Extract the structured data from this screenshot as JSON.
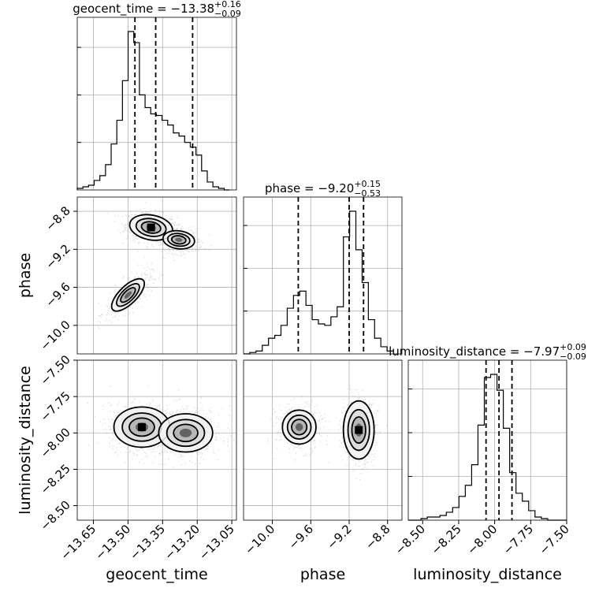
{
  "chart_data": {
    "type": "corner",
    "parameters": [
      "geocent_time",
      "phase",
      "luminosity_distance"
    ],
    "titles": {
      "geocent_time": {
        "name": "geocent_time",
        "median": "−13.38",
        "plus": "+0.16",
        "minus": "−0.09"
      },
      "phase": {
        "name": "phase",
        "median": "−9.20",
        "plus": "+0.15",
        "minus": "−0.53"
      },
      "luminosity_distance": {
        "name": "luminosity_distance",
        "median": "−7.97",
        "plus": "+0.09",
        "minus": "−0.09"
      }
    },
    "axes": {
      "geocent_time": {
        "range": [
          -13.72,
          -13.03
        ],
        "ticks": [
          -13.65,
          -13.5,
          -13.35,
          -13.2,
          -13.05
        ],
        "tick_labels": [
          "−13.65",
          "−13.50",
          "−13.35",
          "−13.20",
          "−13.05"
        ]
      },
      "phase": {
        "range": [
          -10.3,
          -8.65
        ],
        "ticks": [
          -10.0,
          -9.6,
          -9.2,
          -8.8
        ],
        "tick_labels": [
          "−10.0",
          "−9.6",
          "−9.2",
          "−8.8"
        ]
      },
      "luminosity_distance": {
        "range": [
          -8.6,
          -7.5
        ],
        "ticks": [
          -8.5,
          -8.25,
          -8.0,
          -7.75,
          -7.5
        ],
        "tick_labels": [
          "−8.50",
          "−8.25",
          "−8.00",
          "−7.75",
          "−7.50"
        ]
      }
    },
    "histograms": {
      "geocent_time": {
        "bin_edges": [
          -13.72,
          -13.6955,
          -13.671,
          -13.6465,
          -13.622,
          -13.5975,
          -13.573,
          -13.5485,
          -13.524,
          -13.4995,
          -13.475,
          -13.4505,
          -13.426,
          -13.4015,
          -13.377,
          -13.3525,
          -13.328,
          -13.3035,
          -13.279,
          -13.2545,
          -13.23,
          -13.2055,
          -13.181,
          -13.1565,
          -13.132,
          -13.1075,
          -13.083,
          -13.06
        ],
        "counts": [
          0.01,
          0.02,
          0.03,
          0.06,
          0.09,
          0.16,
          0.29,
          0.44,
          0.69,
          1.0,
          0.93,
          0.6,
          0.52,
          0.48,
          0.47,
          0.44,
          0.41,
          0.36,
          0.34,
          0.3,
          0.27,
          0.22,
          0.12,
          0.05,
          0.02,
          0.01,
          0.0
        ],
        "quantiles": [
          -13.47,
          -13.38,
          -13.22
        ]
      },
      "phase": {
        "bin_edges": [
          -10.3,
          -10.235,
          -10.17,
          -10.105,
          -10.04,
          -9.975,
          -9.91,
          -9.845,
          -9.78,
          -9.715,
          -9.65,
          -9.585,
          -9.52,
          -9.455,
          -9.39,
          -9.325,
          -9.26,
          -9.195,
          -9.13,
          -9.065,
          -9.0,
          -8.935,
          -8.87,
          -8.805,
          -8.74
        ],
        "counts": [
          0.0,
          0.01,
          0.02,
          0.06,
          0.11,
          0.13,
          0.2,
          0.32,
          0.41,
          0.44,
          0.34,
          0.24,
          0.21,
          0.2,
          0.26,
          0.33,
          0.82,
          1.0,
          0.73,
          0.5,
          0.24,
          0.11,
          0.05,
          0.02
        ],
        "quantiles": [
          -9.73,
          -9.2,
          -9.05
        ]
      },
      "luminosity_distance": {
        "bin_edges": [
          -8.6,
          -8.556,
          -8.512,
          -8.468,
          -8.424,
          -8.38,
          -8.336,
          -8.292,
          -8.248,
          -8.204,
          -8.16,
          -8.116,
          -8.072,
          -8.028,
          -7.984,
          -7.94,
          -7.896,
          -7.852,
          -7.808,
          -7.764,
          -7.72,
          -7.676,
          -7.632,
          -7.588,
          -7.544,
          -7.5
        ],
        "counts": [
          0.0,
          0.0,
          0.01,
          0.02,
          0.02,
          0.03,
          0.05,
          0.08,
          0.15,
          0.22,
          0.35,
          0.6,
          0.9,
          0.92,
          0.82,
          0.58,
          0.3,
          0.17,
          0.12,
          0.06,
          0.02,
          0.01,
          0.0,
          0.0,
          0.0
        ],
        "quantiles": [
          -8.06,
          -7.97,
          -7.88
        ]
      }
    },
    "scatter_2d": [
      {
        "x": "geocent_time",
        "y": "phase",
        "modes": [
          {
            "cx": -13.4,
            "cy": -8.97,
            "sx": 0.055,
            "sy": 0.08,
            "sxy": -0.2,
            "w": 0.65
          },
          {
            "cx": -13.28,
            "cy": -9.1,
            "sx": 0.05,
            "sy": 0.07,
            "sxy": -0.15,
            "w": 0.3
          },
          {
            "cx": -13.5,
            "cy": -9.68,
            "sx": 0.05,
            "sy": 0.12,
            "sxy": 0.7,
            "w": 0.35
          }
        ]
      },
      {
        "x": "geocent_time",
        "y": "luminosity_distance",
        "modes": [
          {
            "cx": -13.44,
            "cy": -7.96,
            "sx": 0.07,
            "sy": 0.08,
            "sxy": 0.0,
            "w": 0.7
          },
          {
            "cx": -13.25,
            "cy": -8.0,
            "sx": 0.08,
            "sy": 0.09,
            "sxy": 0.0,
            "w": 0.4
          }
        ]
      },
      {
        "x": "phase",
        "y": "luminosity_distance",
        "modes": [
          {
            "cx": -9.72,
            "cy": -7.96,
            "sx": 0.12,
            "sy": 0.08,
            "sxy": 0.0,
            "w": 0.4
          },
          {
            "cx": -9.1,
            "cy": -7.98,
            "sx": 0.08,
            "sy": 0.1,
            "sxy": 0.0,
            "w": 1.0
          }
        ]
      }
    ],
    "grid": true,
    "quantile_style": "dashed"
  }
}
